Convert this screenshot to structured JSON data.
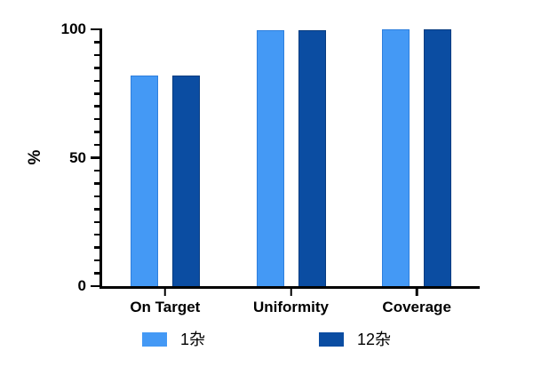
{
  "chart_data": {
    "type": "bar",
    "title": "",
    "categories": [
      "On Target",
      "Uniformity",
      "Coverage"
    ],
    "series": [
      {
        "name": "1杂",
        "color": "#4499f5",
        "border_color": "#2e7fdd",
        "values": [
          82,
          99.5,
          100
        ]
      },
      {
        "name": "12杂",
        "color": "#0b4da2",
        "border_color": "#083c80",
        "values": [
          82,
          99.5,
          100
        ]
      }
    ],
    "xlabel": "",
    "ylabel": "%",
    "ylim": [
      0,
      100
    ],
    "yticks_major": [
      0,
      50,
      100
    ],
    "ytick_minor_step": 5,
    "grid": false,
    "legend_position": "bottom",
    "axis_color": "#000000",
    "background_color": "#ffffff"
  },
  "legend": {
    "items": [
      {
        "label": "1杂",
        "color": "#4499f5"
      },
      {
        "label": "12杂",
        "color": "#0b4da2"
      }
    ]
  }
}
